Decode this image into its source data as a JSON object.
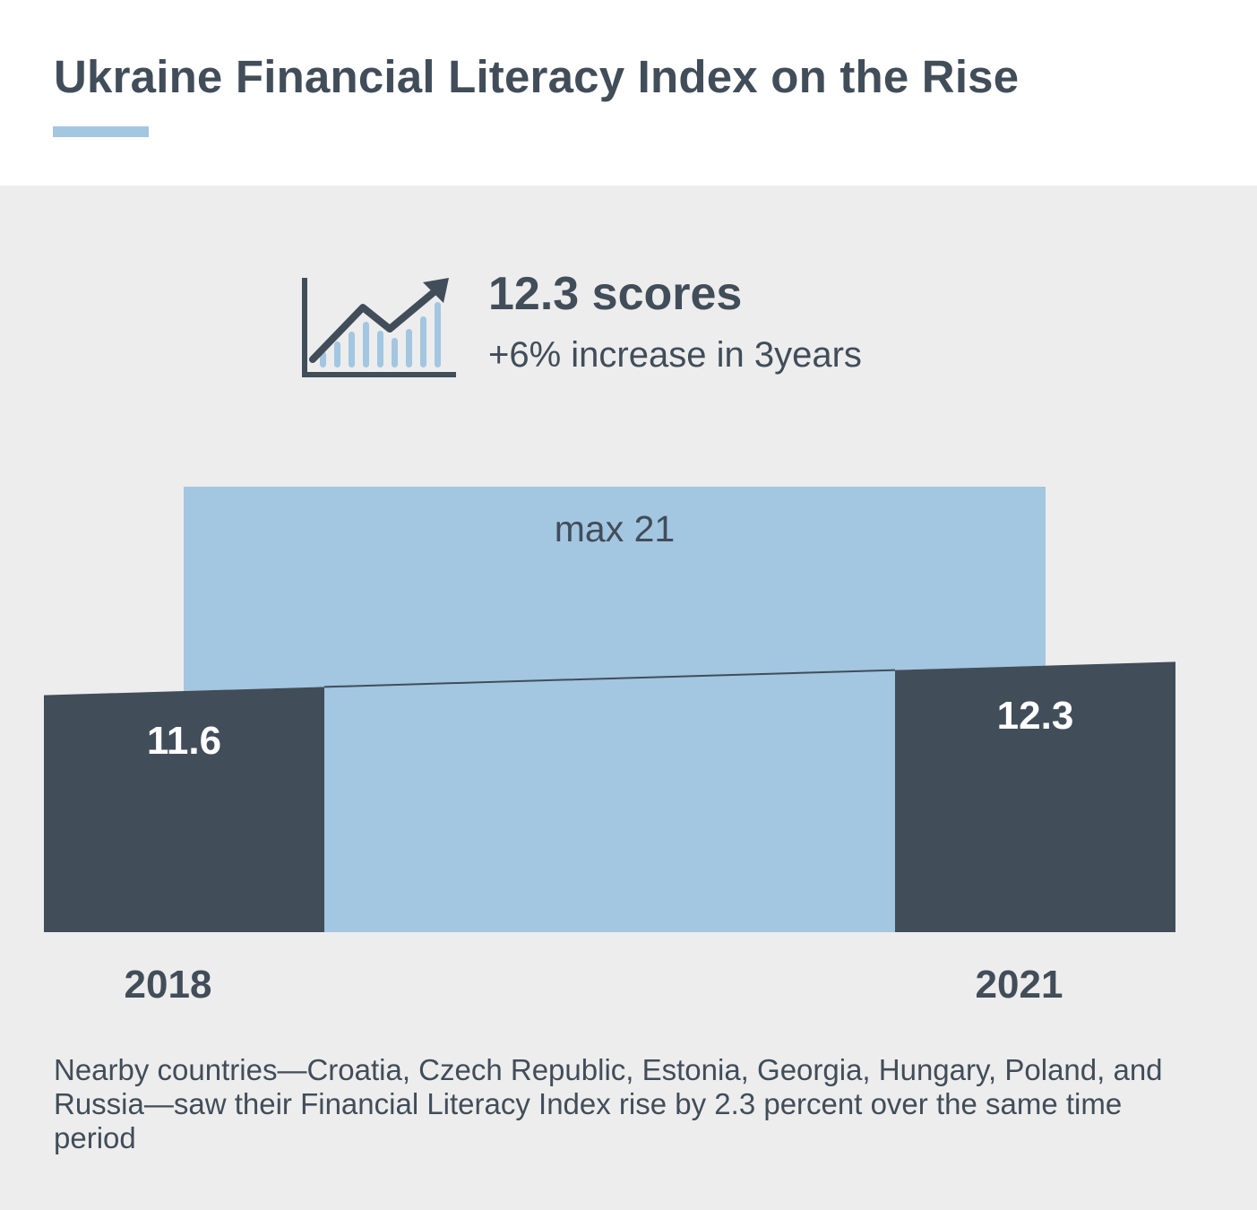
{
  "title": "Ukraine Financial Literacy Index on the Rise",
  "colors": {
    "dark": "#414d59",
    "light": "#a3c6e1",
    "panel": "#ededed"
  },
  "highlight": {
    "icon": "growth-chart-icon",
    "value": "12.3 scores",
    "subtitle": "+6% increase in 3years"
  },
  "chart_data": {
    "type": "bar",
    "categories": [
      "2018",
      "2021"
    ],
    "values": [
      11.6,
      12.3
    ],
    "value_labels": [
      "11.6",
      "12.3"
    ],
    "max_value": 21,
    "max_label": "max 21",
    "title": "",
    "xlabel": "",
    "ylabel": "",
    "ylim": [
      0,
      21
    ],
    "grid": false,
    "legend": "none"
  },
  "footnote": "Nearby countries—Croatia, Czech Republic, Estonia, Georgia, Hungary, Poland, and Russia—saw their Financial Literacy Index rise by 2.3 percent over the same time period"
}
